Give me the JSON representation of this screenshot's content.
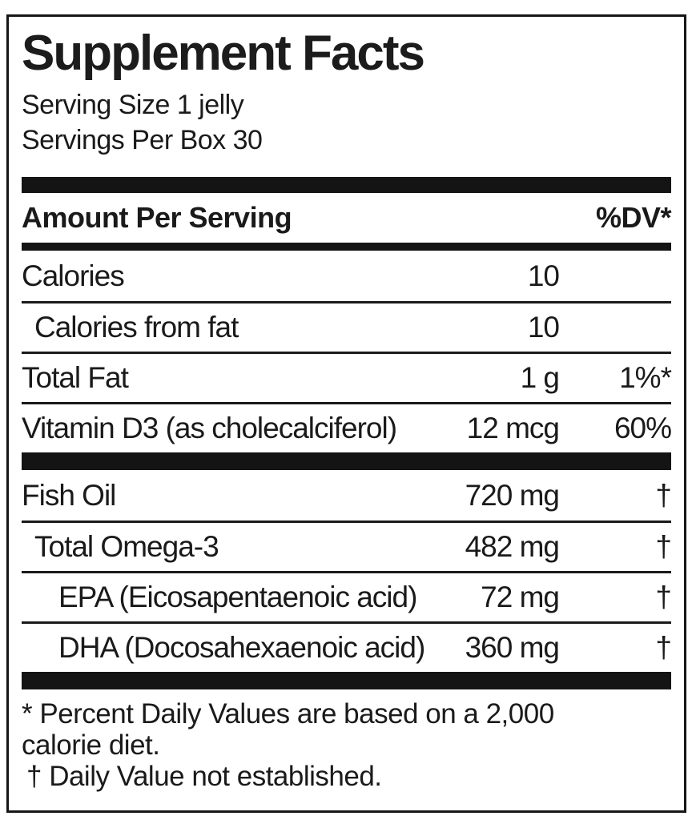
{
  "panel": {
    "title": "Supplement Facts",
    "serving_size": "Serving Size 1 jelly",
    "servings_per_box": "Servings Per Box 30",
    "columns": {
      "amount_header": "Amount Per Serving",
      "dv_header": "%DV*"
    },
    "rows": [
      {
        "name": "Calories",
        "amount": "10",
        "dv": "",
        "indent": 0
      },
      {
        "name": "Calories from fat",
        "amount": "10",
        "dv": "",
        "indent": 1
      },
      {
        "name": "Total Fat",
        "amount": "1 g",
        "dv": "1%*",
        "indent": 0
      },
      {
        "name": "Vitamin D3 (as cholecalciferol)",
        "amount": "12 mcg",
        "dv": "60%",
        "indent": 0
      },
      {
        "name": "Fish Oil",
        "amount": "720 mg",
        "dv": "†",
        "indent": 0
      },
      {
        "name": "Total Omega-3",
        "amount": "482 mg",
        "dv": "†",
        "indent": 1
      },
      {
        "name": "EPA (Eicosapentaenoic acid)",
        "amount": "72 mg",
        "dv": "†",
        "indent": 2
      },
      {
        "name": "DHA (Docosahexaenoic acid)",
        "amount": "360 mg",
        "dv": "†",
        "indent": 2
      }
    ],
    "footnotes": {
      "dv_note": "* Percent Daily Values are based on a 2,000 calorie diet.",
      "dagger_note": "† Daily Value not established."
    }
  },
  "colors": {
    "text": "#1a1a1a",
    "bar": "#141414",
    "border": "#161616",
    "background": "#ffffff"
  }
}
